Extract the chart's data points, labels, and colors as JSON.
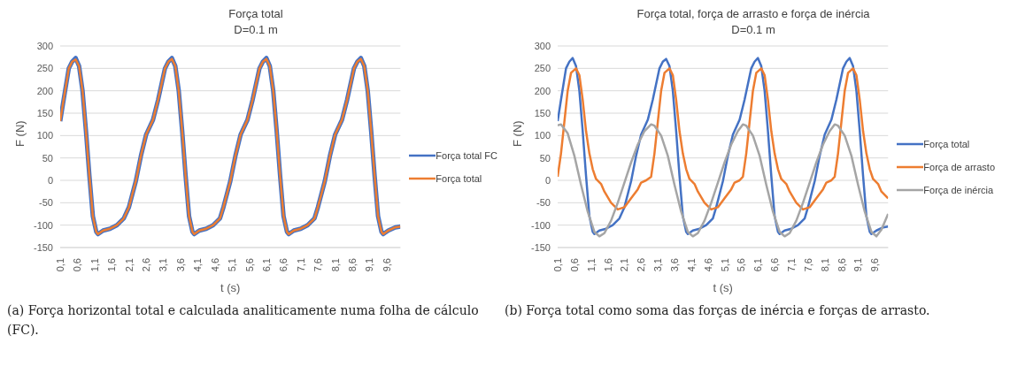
{
  "chart_data": [
    {
      "type": "line",
      "title": "Força total",
      "subtitle": "D=0.1 m",
      "xlabel": "t (s)",
      "ylabel": "F (N)",
      "xlim": [
        0.1,
        10
      ],
      "ylim": [
        -150,
        300
      ],
      "yticks": [
        -150,
        -100,
        -50,
        0,
        50,
        100,
        150,
        200,
        250,
        300
      ],
      "xticks": [
        {
          "value": 0.1,
          "label": "0,1"
        },
        {
          "value": 0.6,
          "label": "0,6"
        },
        {
          "value": 1.1,
          "label": "1,1"
        },
        {
          "value": 1.6,
          "label": "1,6"
        },
        {
          "value": 2.1,
          "label": "2,1"
        },
        {
          "value": 2.6,
          "label": "2,6"
        },
        {
          "value": 3.1,
          "label": "3,1"
        },
        {
          "value": 3.6,
          "label": "3,6"
        },
        {
          "value": 4.1,
          "label": "4,1"
        },
        {
          "value": 4.6,
          "label": "4,6"
        },
        {
          "value": 5.1,
          "label": "5,1"
        },
        {
          "value": 5.6,
          "label": "5,6"
        },
        {
          "value": 6.1,
          "label": "6,1"
        },
        {
          "value": 6.6,
          "label": "6,6"
        },
        {
          "value": 7.1,
          "label": "7,1"
        },
        {
          "value": 7.6,
          "label": "7,6"
        },
        {
          "value": 8.1,
          "label": "8,1"
        },
        {
          "value": 8.6,
          "label": "8,6"
        },
        {
          "value": 9.1,
          "label": "9,1"
        },
        {
          "value": 9.6,
          "label": "9,6"
        }
      ],
      "grid": "y",
      "legend": "right",
      "annotations": [
        "(a) Força horizontal total e calculada analiticamente numa folha de cálculo (FC)."
      ],
      "series": [
        {
          "name": "Força total FC",
          "color": "#4472c4",
          "x": [
            0.1,
            0.2,
            0.35,
            0.45,
            0.55,
            0.65,
            0.75,
            0.85,
            0.95,
            1.05,
            1.15,
            1.2,
            1.35,
            1.55,
            1.75,
            1.95,
            2.1,
            2.3,
            2.45,
            2.6,
            2.8,
            2.95,
            3.15,
            3.25,
            3.35,
            3.45,
            3.55,
            3.65,
            3.75,
            3.85,
            3.95,
            4.0,
            4.15,
            4.35,
            4.55,
            4.75,
            4.85,
            5.05,
            5.2,
            5.35,
            5.55,
            5.7,
            5.9,
            6.0,
            6.1,
            6.2,
            6.3,
            6.4,
            6.5,
            6.6,
            6.7,
            6.75,
            6.9,
            7.1,
            7.3,
            7.5,
            7.6,
            7.8,
            7.95,
            8.1,
            8.3,
            8.45,
            8.65,
            8.75,
            8.85,
            8.95,
            9.05,
            9.15,
            9.25,
            9.35,
            9.45,
            9.5,
            9.65,
            9.85,
            10.0
          ],
          "values": [
            132,
            180,
            250,
            265,
            273,
            255,
            200,
            110,
            10,
            -80,
            -115,
            -120,
            -112,
            -108,
            -100,
            -85,
            -60,
            -2,
            55,
            102,
            135,
            180,
            250,
            265,
            273,
            255,
            200,
            110,
            10,
            -80,
            -115,
            -120,
            -112,
            -108,
            -100,
            -85,
            -60,
            -2,
            55,
            102,
            135,
            180,
            250,
            265,
            273,
            255,
            200,
            110,
            10,
            -80,
            -115,
            -120,
            -112,
            -108,
            -100,
            -85,
            -60,
            -2,
            55,
            102,
            135,
            180,
            250,
            265,
            273,
            255,
            200,
            110,
            10,
            -80,
            -115,
            -120,
            -112,
            -105,
            -103
          ]
        },
        {
          "name": "Força total",
          "color": "#ed7d31",
          "x": [
            0.1,
            0.2,
            0.35,
            0.45,
            0.55,
            0.65,
            0.75,
            0.85,
            0.95,
            1.05,
            1.15,
            1.2,
            1.35,
            1.55,
            1.75,
            1.95,
            2.1,
            2.3,
            2.45,
            2.6,
            2.8,
            2.95,
            3.15,
            3.25,
            3.35,
            3.45,
            3.55,
            3.65,
            3.75,
            3.85,
            3.95,
            4.0,
            4.15,
            4.35,
            4.55,
            4.75,
            4.85,
            5.05,
            5.2,
            5.35,
            5.55,
            5.7,
            5.9,
            6.0,
            6.1,
            6.2,
            6.3,
            6.4,
            6.5,
            6.6,
            6.7,
            6.75,
            6.9,
            7.1,
            7.3,
            7.5,
            7.6,
            7.8,
            7.95,
            8.1,
            8.3,
            8.45,
            8.65,
            8.75,
            8.85,
            8.95,
            9.05,
            9.15,
            9.25,
            9.35,
            9.45,
            9.5,
            9.65,
            9.85,
            10.0
          ],
          "values": [
            132,
            180,
            250,
            265,
            270,
            255,
            200,
            110,
            10,
            -80,
            -115,
            -120,
            -112,
            -108,
            -100,
            -85,
            -60,
            -2,
            55,
            102,
            135,
            180,
            250,
            265,
            271,
            255,
            200,
            110,
            10,
            -80,
            -115,
            -120,
            -112,
            -108,
            -100,
            -85,
            -60,
            -2,
            55,
            102,
            135,
            180,
            250,
            265,
            271,
            255,
            200,
            110,
            10,
            -80,
            -115,
            -120,
            -112,
            -108,
            -100,
            -85,
            -60,
            -2,
            55,
            102,
            135,
            180,
            250,
            265,
            271,
            255,
            200,
            110,
            10,
            -80,
            -115,
            -120,
            -112,
            -105,
            -103
          ]
        }
      ]
    },
    {
      "type": "line",
      "title": "Força total, força de arrasto e força de inércia",
      "subtitle": "D=0.1 m",
      "xlabel": "t (s)",
      "ylabel": "F (N)",
      "xlim": [
        0.1,
        10
      ],
      "ylim": [
        -150,
        300
      ],
      "yticks": [
        -150,
        -100,
        -50,
        0,
        50,
        100,
        150,
        200,
        250,
        300
      ],
      "xticks": [
        {
          "value": 0.1,
          "label": "0,1"
        },
        {
          "value": 0.6,
          "label": "0,6"
        },
        {
          "value": 1.1,
          "label": "1,1"
        },
        {
          "value": 1.6,
          "label": "1,6"
        },
        {
          "value": 2.1,
          "label": "2,1"
        },
        {
          "value": 2.6,
          "label": "2,6"
        },
        {
          "value": 3.1,
          "label": "3,1"
        },
        {
          "value": 3.6,
          "label": "3,6"
        },
        {
          "value": 4.1,
          "label": "4,1"
        },
        {
          "value": 4.6,
          "label": "4,6"
        },
        {
          "value": 5.1,
          "label": "5,1"
        },
        {
          "value": 5.6,
          "label": "5,6"
        },
        {
          "value": 6.1,
          "label": "6,1"
        },
        {
          "value": 6.6,
          "label": "6,6"
        },
        {
          "value": 7.1,
          "label": "7,1"
        },
        {
          "value": 7.6,
          "label": "7,6"
        },
        {
          "value": 8.1,
          "label": "8,1"
        },
        {
          "value": 8.6,
          "label": "8,6"
        },
        {
          "value": 9.1,
          "label": "9,1"
        },
        {
          "value": 9.6,
          "label": "9,6"
        }
      ],
      "grid": "y",
      "legend": "right",
      "annotations": [
        "(b) Força total como soma das forças de inércia e forças de arrasto."
      ],
      "series": [
        {
          "name": "Força total",
          "color": "#4472c4",
          "x": [
            0.1,
            0.2,
            0.35,
            0.45,
            0.55,
            0.65,
            0.75,
            0.85,
            0.95,
            1.05,
            1.15,
            1.2,
            1.35,
            1.55,
            1.75,
            1.95,
            2.1,
            2.3,
            2.45,
            2.6,
            2.8,
            2.95,
            3.15,
            3.25,
            3.35,
            3.45,
            3.55,
            3.65,
            3.75,
            3.85,
            3.95,
            4.0,
            4.15,
            4.35,
            4.55,
            4.75,
            4.85,
            5.05,
            5.2,
            5.35,
            5.55,
            5.7,
            5.9,
            6.0,
            6.1,
            6.2,
            6.3,
            6.4,
            6.5,
            6.6,
            6.7,
            6.75,
            6.9,
            7.1,
            7.3,
            7.5,
            7.6,
            7.8,
            7.95,
            8.1,
            8.3,
            8.45,
            8.65,
            8.75,
            8.85,
            8.95,
            9.05,
            9.15,
            9.25,
            9.35,
            9.45,
            9.5,
            9.65,
            9.85,
            10.0
          ],
          "values": [
            132,
            180,
            250,
            265,
            273,
            255,
            200,
            110,
            10,
            -80,
            -115,
            -120,
            -112,
            -108,
            -100,
            -85,
            -60,
            -2,
            55,
            102,
            135,
            180,
            250,
            265,
            271,
            255,
            200,
            110,
            10,
            -80,
            -115,
            -120,
            -112,
            -108,
            -100,
            -85,
            -60,
            -2,
            55,
            102,
            135,
            180,
            250,
            265,
            273,
            255,
            200,
            110,
            10,
            -80,
            -115,
            -120,
            -112,
            -108,
            -100,
            -85,
            -60,
            -2,
            55,
            102,
            135,
            180,
            250,
            265,
            273,
            255,
            200,
            110,
            10,
            -80,
            -115,
            -120,
            -112,
            -105,
            -103
          ]
        },
        {
          "name": "Força de arrasto",
          "color": "#ed7d31",
          "x": [
            0.1,
            0.2,
            0.3,
            0.4,
            0.5,
            0.65,
            0.75,
            0.85,
            0.95,
            1.05,
            1.15,
            1.25,
            1.4,
            1.5,
            1.7,
            1.9,
            2.1,
            2.3,
            2.5,
            2.6,
            2.75,
            2.9,
            3.0,
            3.1,
            3.2,
            3.3,
            3.45,
            3.55,
            3.65,
            3.75,
            3.85,
            3.95,
            4.05,
            4.2,
            4.3,
            4.5,
            4.7,
            4.9,
            5.1,
            5.3,
            5.4,
            5.55,
            5.65,
            5.75,
            5.85,
            5.95,
            6.05,
            6.2,
            6.3,
            6.4,
            6.5,
            6.6,
            6.7,
            6.8,
            6.95,
            7.05,
            7.25,
            7.45,
            7.65,
            7.85,
            8.05,
            8.15,
            8.3,
            8.4,
            8.5,
            8.6,
            8.7,
            8.8,
            8.95,
            9.05,
            9.15,
            9.25,
            9.35,
            9.45,
            9.55,
            9.7,
            9.8,
            10.0
          ],
          "values": [
            8,
            60,
            130,
            200,
            240,
            250,
            235,
            180,
            110,
            60,
            25,
            3,
            -8,
            -25,
            -50,
            -65,
            -60,
            -40,
            -20,
            -5,
            0,
            8,
            60,
            130,
            200,
            240,
            250,
            235,
            180,
            110,
            60,
            25,
            3,
            -8,
            -25,
            -50,
            -65,
            -60,
            -40,
            -20,
            -5,
            0,
            8,
            60,
            130,
            200,
            240,
            250,
            235,
            180,
            110,
            60,
            25,
            3,
            -8,
            -25,
            -50,
            -65,
            -60,
            -40,
            -20,
            -5,
            0,
            8,
            60,
            130,
            200,
            240,
            250,
            235,
            180,
            110,
            60,
            25,
            3,
            -8,
            -25,
            -40
          ]
        },
        {
          "name": "Força de inércia",
          "color": "#a5a5a5",
          "x": [
            0.1,
            0.2,
            0.4,
            0.6,
            0.8,
            1.0,
            1.2,
            1.35,
            1.5,
            1.7,
            1.9,
            2.1,
            2.3,
            2.5,
            2.7,
            2.9,
            3.0,
            3.2,
            3.4,
            3.6,
            3.8,
            4.0,
            4.15,
            4.3,
            4.5,
            4.7,
            4.9,
            5.1,
            5.3,
            5.5,
            5.65,
            5.75,
            5.95,
            6.15,
            6.35,
            6.55,
            6.75,
            6.9,
            7.05,
            7.25,
            7.45,
            7.65,
            7.85,
            8.05,
            8.25,
            8.4,
            8.5,
            8.7,
            8.9,
            9.1,
            9.3,
            9.5,
            9.65,
            9.8,
            10.0
          ],
          "values": [
            123,
            125,
            105,
            55,
            -10,
            -70,
            -115,
            -125,
            -118,
            -90,
            -50,
            -5,
            40,
            80,
            110,
            125,
            122,
            100,
            55,
            -10,
            -70,
            -115,
            -125,
            -118,
            -90,
            -50,
            -5,
            40,
            80,
            110,
            125,
            122,
            100,
            55,
            -10,
            -70,
            -115,
            -125,
            -118,
            -90,
            -50,
            -5,
            40,
            80,
            110,
            125,
            122,
            100,
            55,
            -10,
            -70,
            -115,
            -125,
            -110,
            -75
          ]
        }
      ]
    }
  ]
}
